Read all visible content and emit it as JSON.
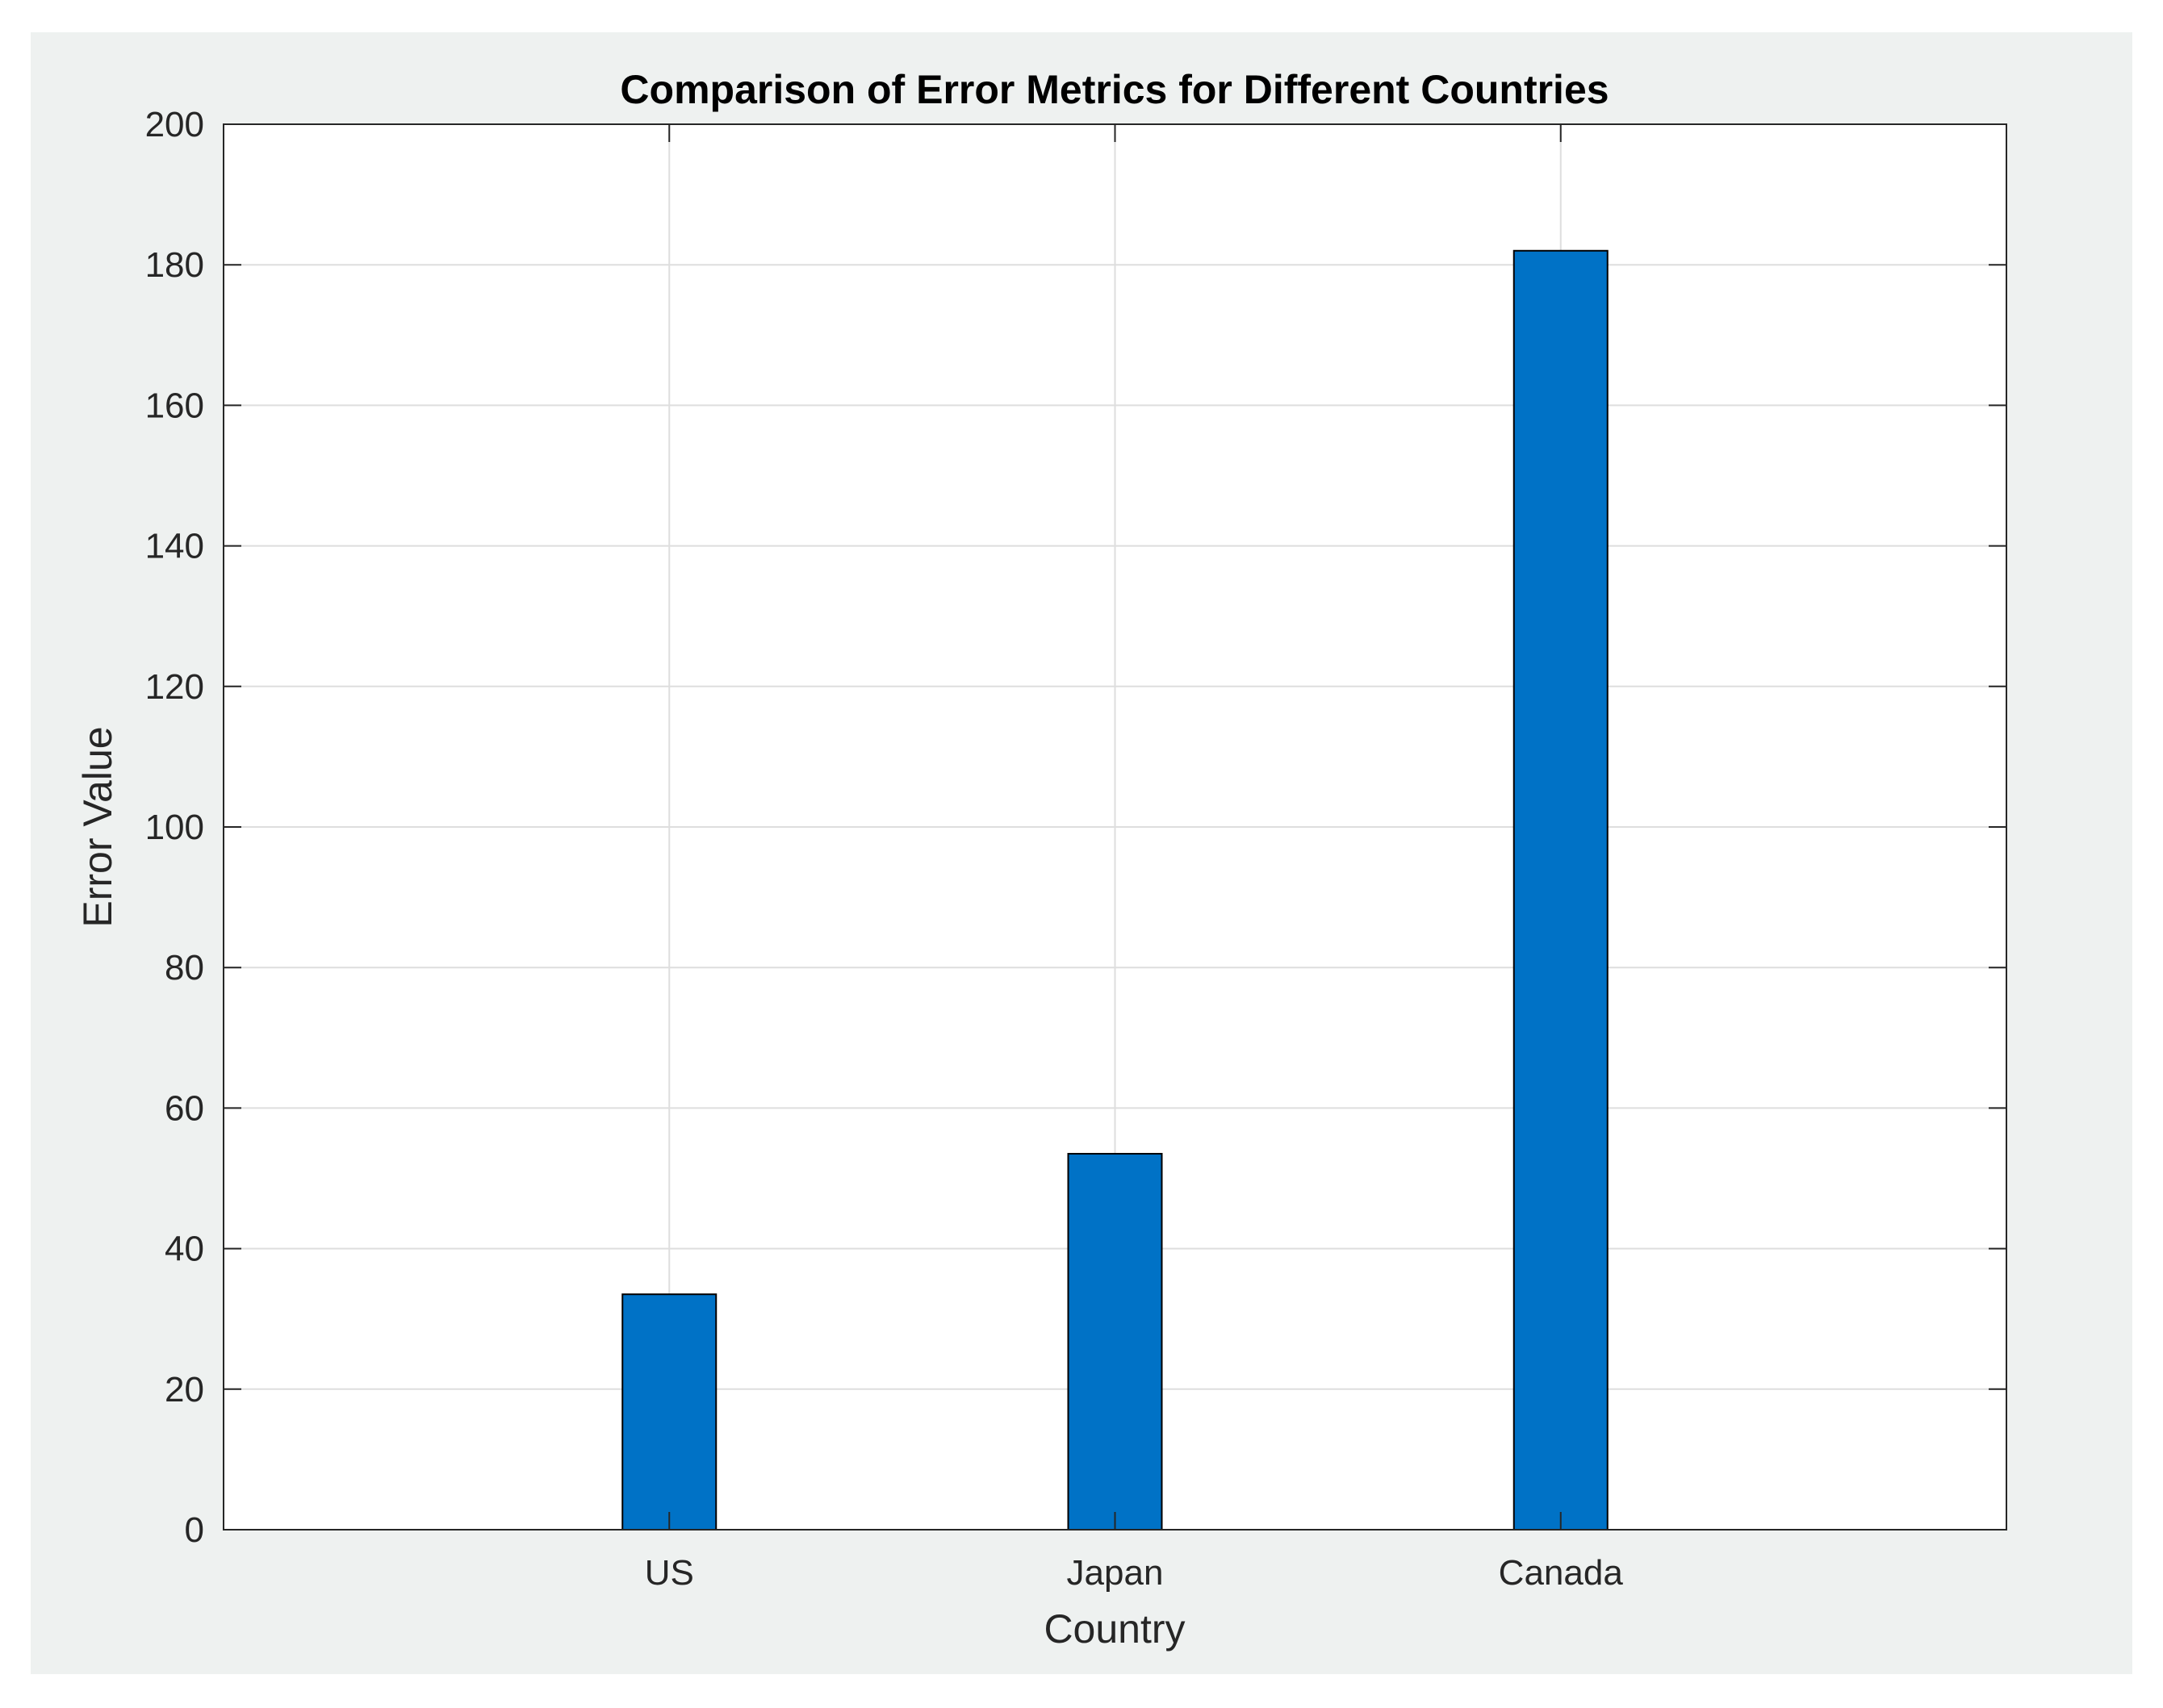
{
  "chart_data": {
    "type": "bar",
    "title": "Comparison of Error Metrics for Different Countries",
    "xlabel": "Country",
    "ylabel": "Error Value",
    "categories": [
      "US",
      "Japan",
      "Canada"
    ],
    "values": [
      33.5,
      53.5,
      182
    ],
    "ylim": [
      0,
      200
    ],
    "yticks": [
      0,
      20,
      40,
      60,
      80,
      100,
      120,
      140,
      160,
      180,
      200
    ],
    "grid": true,
    "legend": "none",
    "colors": {
      "bar": "#0072C6",
      "figure_background": "#EEF1F0",
      "axes_background": "#FFFFFF",
      "grid": "#DEDEDE"
    }
  }
}
